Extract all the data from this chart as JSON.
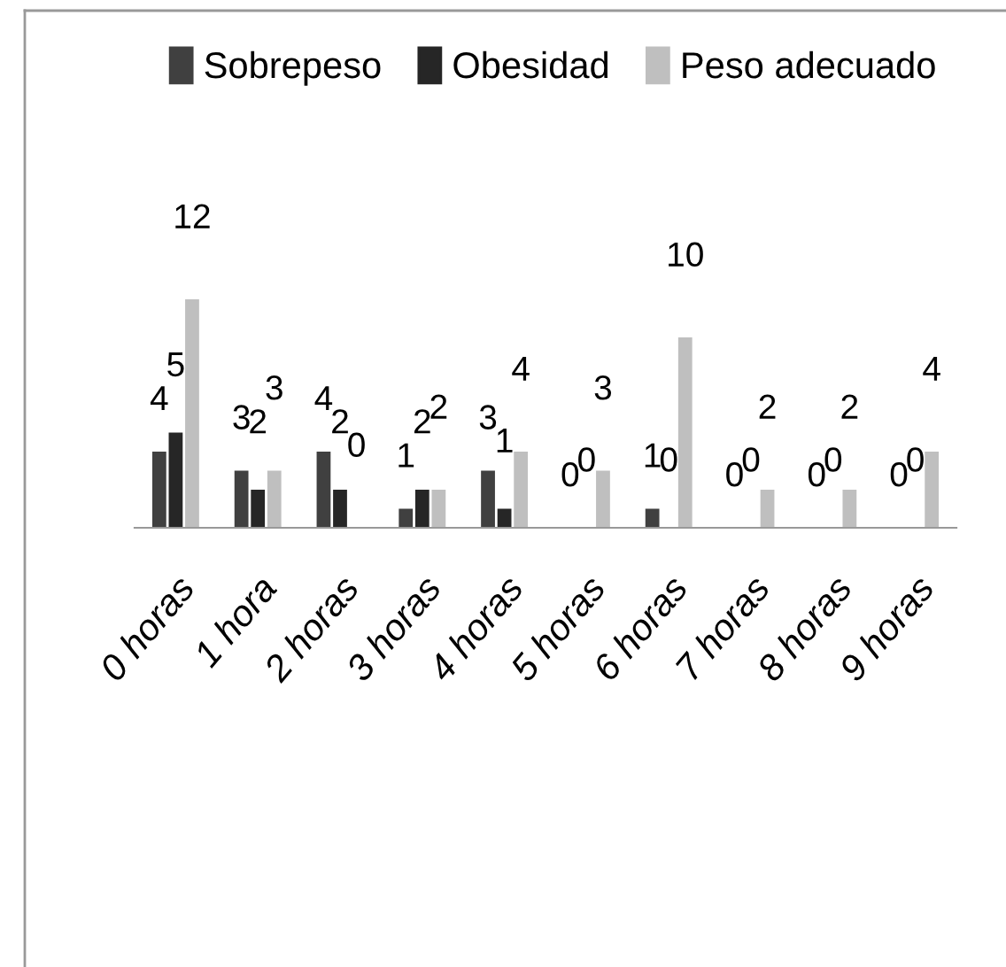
{
  "chart_data": {
    "type": "bar",
    "categories": [
      "0 horas",
      "1 hora",
      "2 horas",
      "3 horas",
      "4 horas",
      "5 horas",
      "6 horas",
      "7 horas",
      "8 horas",
      "9 horas"
    ],
    "series": [
      {
        "name": "Sobrepeso",
        "color": "#404040",
        "values": [
          4,
          3,
          4,
          1,
          3,
          0,
          1,
          0,
          0,
          0
        ]
      },
      {
        "name": "Obesidad",
        "color": "#262626",
        "values": [
          5,
          2,
          2,
          2,
          1,
          0,
          0,
          0,
          0,
          0
        ]
      },
      {
        "name": "Peso adecuado",
        "color": "#bfbfbf",
        "values": [
          12,
          3,
          0,
          2,
          4,
          3,
          10,
          2,
          2,
          4
        ]
      }
    ],
    "data_labels": true,
    "legend": "top",
    "grid": false
  }
}
